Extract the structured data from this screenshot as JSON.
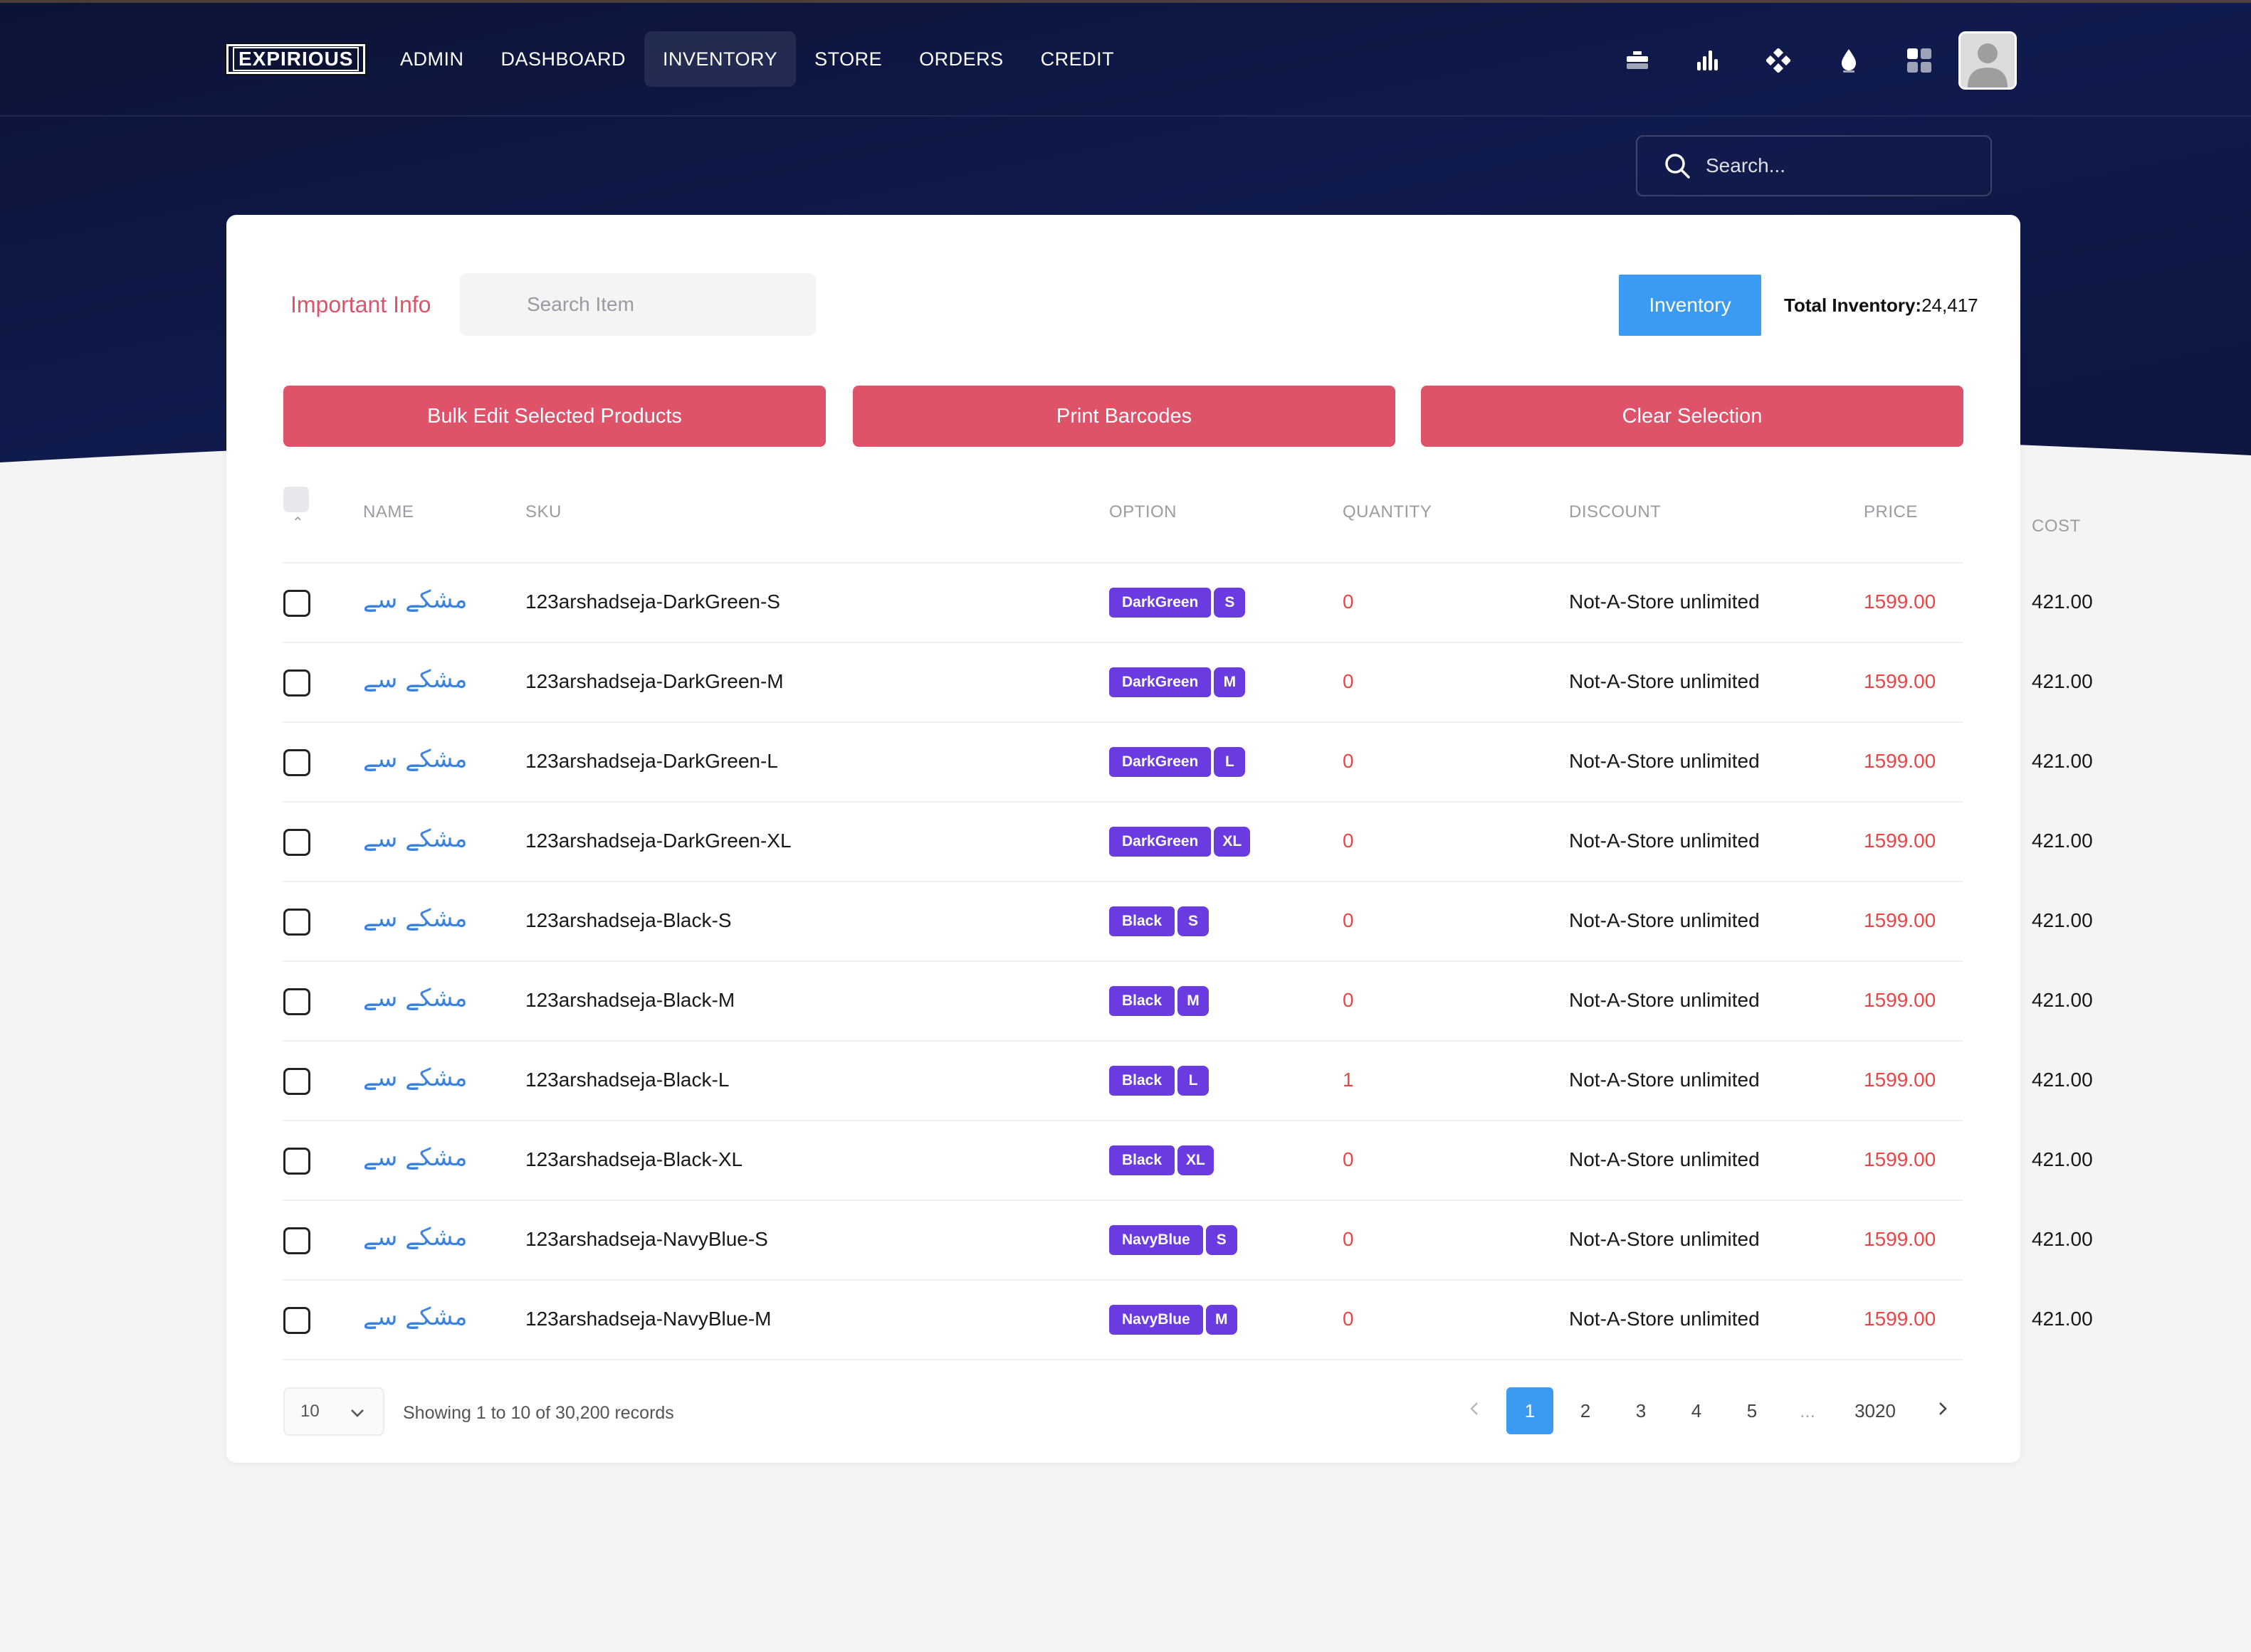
{
  "nav": {
    "logo": "EXPIRIOUS",
    "links": [
      "ADMIN",
      "DASHBOARD",
      "INVENTORY",
      "STORE",
      "ORDERS",
      "CREDIT"
    ],
    "active": "INVENTORY",
    "icons": [
      "briefcase-icon",
      "bar-chart-icon",
      "diamond-grid-icon",
      "drop-icon",
      "dashboard-grid-icon"
    ],
    "search_placeholder": "Search..."
  },
  "toolbar": {
    "important_info": "Important Info",
    "search_item_placeholder": "Search Item",
    "inventory_button": "Inventory",
    "total_label": "Total Inventory:",
    "total_value": "24,417"
  },
  "actions": {
    "bulk_edit": "Bulk Edit Selected Products",
    "print_barcodes": "Print Barcodes",
    "clear_selection": "Clear Selection"
  },
  "table": {
    "columns": [
      "NAME",
      "SKU",
      "OPTION",
      "QUANTITY",
      "DISCOUNT",
      "PRICE",
      "COST"
    ],
    "rows": [
      {
        "name": "مشکے سے",
        "sku": "123arshadseja-DarkGreen-S",
        "color": "DarkGreen",
        "size": "S",
        "quantity": "0",
        "discount": "Not-A-Store unlimited",
        "price": "1599.00",
        "cost": "421.00"
      },
      {
        "name": "مشکے سے",
        "sku": "123arshadseja-DarkGreen-M",
        "color": "DarkGreen",
        "size": "M",
        "quantity": "0",
        "discount": "Not-A-Store unlimited",
        "price": "1599.00",
        "cost": "421.00"
      },
      {
        "name": "مشکے سے",
        "sku": "123arshadseja-DarkGreen-L",
        "color": "DarkGreen",
        "size": "L",
        "quantity": "0",
        "discount": "Not-A-Store unlimited",
        "price": "1599.00",
        "cost": "421.00"
      },
      {
        "name": "مشکے سے",
        "sku": "123arshadseja-DarkGreen-XL",
        "color": "DarkGreen",
        "size": "XL",
        "quantity": "0",
        "discount": "Not-A-Store unlimited",
        "price": "1599.00",
        "cost": "421.00"
      },
      {
        "name": "مشکے سے",
        "sku": "123arshadseja-Black-S",
        "color": "Black",
        "size": "S",
        "quantity": "0",
        "discount": "Not-A-Store unlimited",
        "price": "1599.00",
        "cost": "421.00"
      },
      {
        "name": "مشکے سے",
        "sku": "123arshadseja-Black-M",
        "color": "Black",
        "size": "M",
        "quantity": "0",
        "discount": "Not-A-Store unlimited",
        "price": "1599.00",
        "cost": "421.00"
      },
      {
        "name": "مشکے سے",
        "sku": "123arshadseja-Black-L",
        "color": "Black",
        "size": "L",
        "quantity": "1",
        "discount": "Not-A-Store unlimited",
        "price": "1599.00",
        "cost": "421.00"
      },
      {
        "name": "مشکے سے",
        "sku": "123arshadseja-Black-XL",
        "color": "Black",
        "size": "XL",
        "quantity": "0",
        "discount": "Not-A-Store unlimited",
        "price": "1599.00",
        "cost": "421.00"
      },
      {
        "name": "مشکے سے",
        "sku": "123arshadseja-NavyBlue-S",
        "color": "NavyBlue",
        "size": "S",
        "quantity": "0",
        "discount": "Not-A-Store unlimited",
        "price": "1599.00",
        "cost": "421.00"
      },
      {
        "name": "مشکے سے",
        "sku": "123arshadseja-NavyBlue-M",
        "color": "NavyBlue",
        "size": "M",
        "quantity": "0",
        "discount": "Not-A-Store unlimited",
        "price": "1599.00",
        "cost": "421.00"
      }
    ]
  },
  "footer": {
    "per_page": "10",
    "showing": "Showing 1 to 10 of 30,200 records",
    "pages": [
      "1",
      "2",
      "3",
      "4",
      "5",
      "...",
      "3020"
    ],
    "current_page": "1"
  },
  "colors": {
    "header_bg": "#0d1640",
    "accent_red": "#de5369",
    "accent_blue": "#3b9bf2",
    "badge_purple": "#6a3be0"
  }
}
